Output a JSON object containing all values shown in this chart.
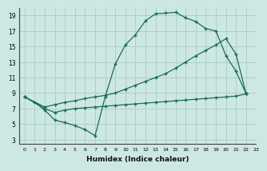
{
  "xlabel": "Humidex (Indice chaleur)",
  "bg_color": "#cde8e2",
  "grid_color": "#aecfc8",
  "line_color": "#1a6b5a",
  "xlim": [
    -0.5,
    23
  ],
  "ylim": [
    2.5,
    20
  ],
  "xticks": [
    0,
    1,
    2,
    3,
    4,
    5,
    6,
    7,
    8,
    9,
    10,
    11,
    12,
    13,
    14,
    15,
    16,
    17,
    18,
    19,
    20,
    21,
    22,
    23
  ],
  "yticks": [
    3,
    5,
    7,
    9,
    11,
    13,
    15,
    17,
    19
  ],
  "line1_x": [
    0,
    1,
    2,
    3,
    4,
    5,
    6,
    7,
    8,
    9,
    10,
    11,
    12,
    13,
    14,
    15,
    16,
    17,
    18,
    19,
    20,
    21,
    22
  ],
  "line1_y": [
    8.5,
    7.8,
    6.8,
    5.5,
    5.2,
    4.8,
    4.3,
    3.5,
    8.5,
    12.7,
    15.2,
    16.5,
    18.3,
    19.2,
    19.3,
    19.4,
    18.7,
    18.2,
    17.3,
    17.0,
    13.8,
    11.8,
    8.9
  ],
  "line2_x": [
    0,
    2,
    3,
    4,
    5,
    6,
    7,
    8,
    9,
    10,
    11,
    12,
    13,
    14,
    15,
    16,
    17,
    18,
    19,
    20,
    21,
    22
  ],
  "line2_y": [
    8.5,
    7.2,
    7.5,
    7.8,
    8.0,
    8.3,
    8.5,
    8.7,
    9.0,
    9.5,
    10.0,
    10.5,
    11.0,
    11.5,
    12.2,
    13.0,
    13.8,
    14.5,
    15.2,
    16.0,
    14.0,
    8.9
  ],
  "line3_x": [
    0,
    2,
    3,
    4,
    5,
    6,
    7,
    8,
    9,
    10,
    11,
    12,
    13,
    14,
    15,
    16,
    17,
    18,
    19,
    20,
    21,
    22
  ],
  "line3_y": [
    8.5,
    7.0,
    6.5,
    6.8,
    7.0,
    7.1,
    7.2,
    7.3,
    7.4,
    7.5,
    7.6,
    7.7,
    7.8,
    7.9,
    8.0,
    8.1,
    8.2,
    8.3,
    8.4,
    8.5,
    8.6,
    8.9
  ]
}
